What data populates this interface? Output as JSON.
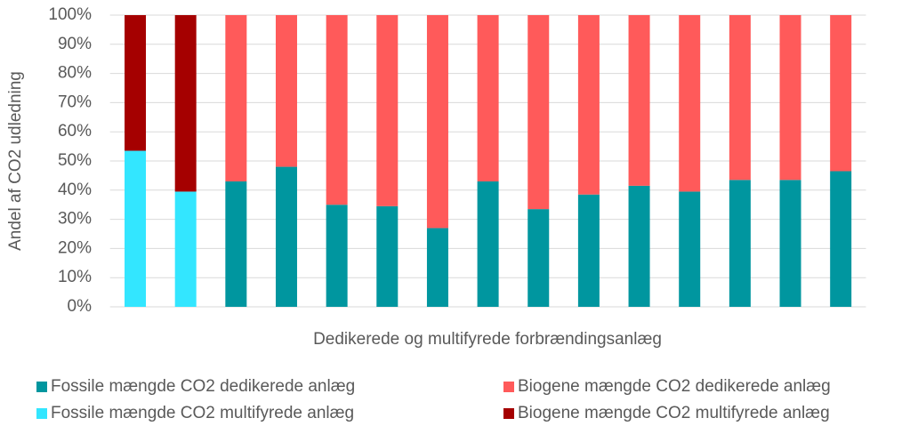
{
  "chart_data": {
    "type": "stacked_bar",
    "y_label": "Andel af CO2 udledning",
    "x_label": "Dedikerede og multifyrede forbrændingsanlæg",
    "categories": [
      null,
      null,
      null,
      null,
      null,
      null,
      null,
      null,
      null,
      null,
      null,
      null,
      null,
      null,
      null
    ],
    "series": [
      {
        "name": "Fossile mængde CO2 dedikerede anlæg",
        "color": "#00969f",
        "values": [
          null,
          null,
          43,
          48,
          35,
          34.5,
          27,
          43,
          33.5,
          38.5,
          41.5,
          39.5,
          43.5,
          43.5,
          46.5
        ]
      },
      {
        "name": "Biogene mængde CO2 dedikerede anlæg",
        "color": "#ff5a5a",
        "values": [
          null,
          null,
          57,
          52,
          65,
          65.5,
          73,
          57,
          66.5,
          61.5,
          58.5,
          60.5,
          56.5,
          56.5,
          53.5
        ]
      },
      {
        "name": "Fossile mængde CO2 multifyrede anlæg",
        "color": "#33e6ff",
        "values": [
          53.5,
          39.5,
          null,
          null,
          null,
          null,
          null,
          null,
          null,
          null,
          null,
          null,
          null,
          null,
          null
        ]
      },
      {
        "name": "Biogene mængde CO2 multifyrede anlæg",
        "color": "#a50000",
        "values": [
          46.5,
          60.5,
          null,
          null,
          null,
          null,
          null,
          null,
          null,
          null,
          null,
          null,
          null,
          null,
          null
        ]
      }
    ],
    "ylim": [
      0,
      100
    ],
    "yticks": [
      {
        "value": 0,
        "label": "0%"
      },
      {
        "value": 10,
        "label": "10%"
      },
      {
        "value": 20,
        "label": "20%"
      },
      {
        "value": 30,
        "label": "30%"
      },
      {
        "value": 40,
        "label": "40%"
      },
      {
        "value": 50,
        "label": "50%"
      },
      {
        "value": 60,
        "label": "60%"
      },
      {
        "value": 70,
        "label": "70%"
      },
      {
        "value": 80,
        "label": "80%"
      },
      {
        "value": 90,
        "label": "90%"
      },
      {
        "value": 100,
        "label": "100%"
      }
    ],
    "grid": true
  }
}
